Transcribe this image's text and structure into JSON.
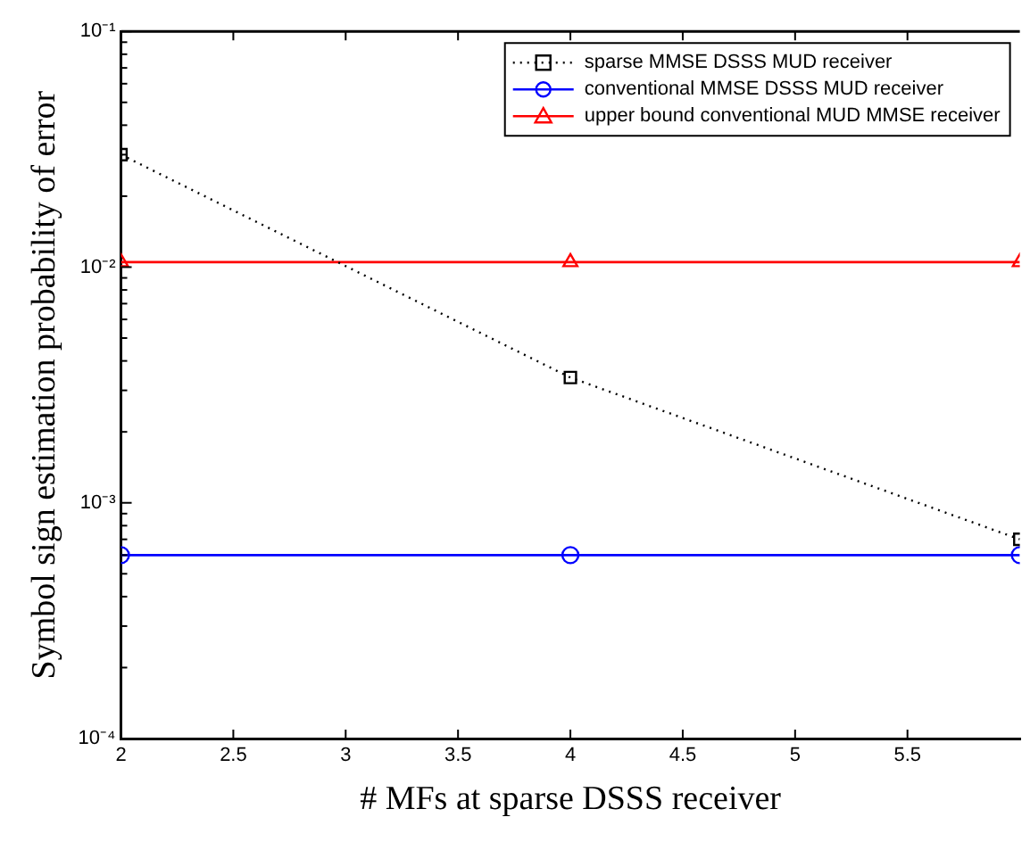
{
  "chart_data": {
    "type": "line",
    "xlabel": "# MFs at sparse DSSS receiver",
    "ylabel": "Symbol sign estimation probability of error",
    "x": [
      2,
      4,
      6
    ],
    "xlim": [
      2,
      6
    ],
    "xticks": [
      2,
      2.5,
      3,
      3.5,
      4,
      4.5,
      5,
      5.5
    ],
    "ylim": [
      0.0001,
      0.1
    ],
    "log": "y",
    "grid": false,
    "legend": "top right",
    "yticks": [
      {
        "value": 0.0001,
        "label": "10⁻⁴"
      },
      {
        "value": 0.0002,
        "label": null
      },
      {
        "value": 0.0003,
        "label": null
      },
      {
        "value": 0.0004,
        "label": null
      },
      {
        "value": 0.0005,
        "label": null
      },
      {
        "value": 0.0006,
        "label": null
      },
      {
        "value": 0.0007,
        "label": null
      },
      {
        "value": 0.0008,
        "label": null
      },
      {
        "value": 0.0009,
        "label": null
      },
      {
        "value": 0.001,
        "label": "10⁻³"
      },
      {
        "value": 0.002,
        "label": null
      },
      {
        "value": 0.003,
        "label": null
      },
      {
        "value": 0.004,
        "label": null
      },
      {
        "value": 0.005,
        "label": null
      },
      {
        "value": 0.006,
        "label": null
      },
      {
        "value": 0.007,
        "label": null
      },
      {
        "value": 0.008,
        "label": null
      },
      {
        "value": 0.009,
        "label": null
      },
      {
        "value": 0.01,
        "label": "10⁻²"
      },
      {
        "value": 0.02,
        "label": null
      },
      {
        "value": 0.03,
        "label": null
      },
      {
        "value": 0.04,
        "label": null
      },
      {
        "value": 0.05,
        "label": null
      },
      {
        "value": 0.06,
        "label": null
      },
      {
        "value": 0.07,
        "label": null
      },
      {
        "value": 0.08,
        "label": null
      },
      {
        "value": 0.09,
        "label": null
      },
      {
        "value": 0.1,
        "label": "10⁻¹"
      }
    ],
    "series": [
      {
        "name": "sparse MMSE DSSS MUD receiver",
        "color": "#000000",
        "marker": "square",
        "line_style": "dotted",
        "values": [
          0.03,
          0.0034,
          0.0007
        ]
      },
      {
        "name": "conventional MMSE DSSS MUD receiver",
        "color": "#0000ff",
        "marker": "circle",
        "line_style": "solid",
        "values": [
          0.0006,
          0.0006,
          0.0006
        ]
      },
      {
        "name": "upper bound conventional MUD MMSE receiver",
        "color": "#ff0000",
        "marker": "triangle",
        "line_style": "solid",
        "values": [
          0.0105,
          0.0105,
          0.0105
        ]
      }
    ]
  }
}
